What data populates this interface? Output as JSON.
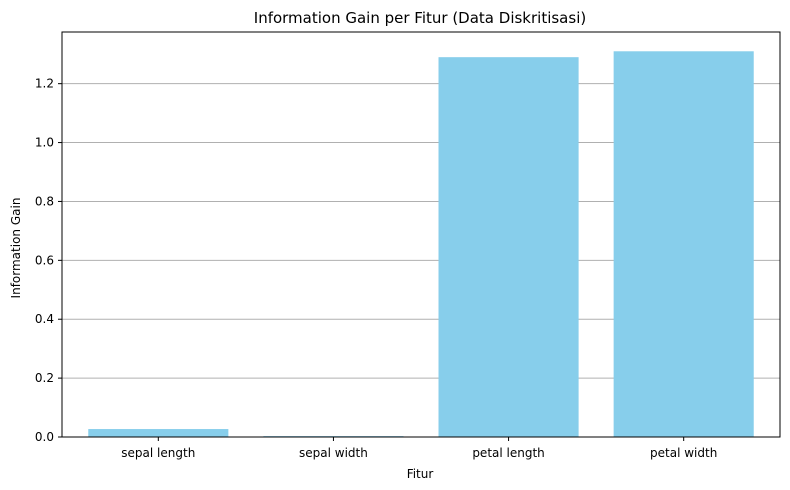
{
  "chart_data": {
    "type": "bar",
    "title": "Information Gain per Fitur (Data Diskritisasi)",
    "xlabel": "Fitur",
    "ylabel": "Information Gain",
    "categories": [
      "sepal length",
      "sepal width",
      "petal length",
      "petal width"
    ],
    "values": [
      0.027,
      0.003,
      1.29,
      1.31
    ],
    "ylim": [
      0,
      1.3755
    ],
    "yticks": [
      0.0,
      0.2,
      0.4,
      0.6,
      0.8,
      1.0,
      1.2
    ],
    "ytick_labels": [
      "0.0",
      "0.2",
      "0.4",
      "0.6",
      "0.8",
      "1.0",
      "1.2"
    ],
    "grid": "y-axis",
    "bar_color": "#87CEEB",
    "grid_color": "#b0b0b0"
  }
}
